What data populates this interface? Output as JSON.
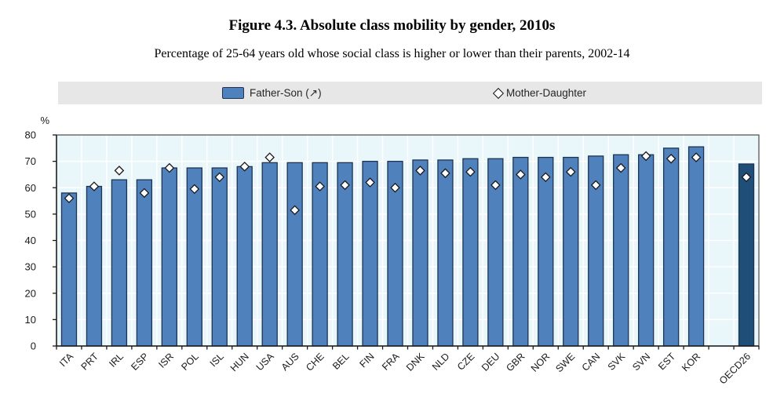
{
  "figure": {
    "title": "Figure 4.3. Absolute class mobility by gender, 2010s",
    "subtitle": "Percentage of 25-64 years old whose social class is higher or lower than their parents, 2002-14"
  },
  "legend": {
    "father_son_label": "Father-Son (↗)",
    "mother_daughter_label": "Mother-Daughter"
  },
  "colors": {
    "bar_fill": "#4f81bd",
    "bar_stroke": "#1f3352",
    "highlight_bar_fill": "#1f4e79",
    "marker_fill": "#ffffff",
    "marker_stroke": "#1a1a1a",
    "plot_bg": "#e9f6fa",
    "gridline": "#ffffff",
    "legend_bg": "#e7e7e7",
    "axis_line": "#1a1a1a",
    "plot_border": "#4a4a4a",
    "tick_label": "#1a1a1a"
  },
  "chart_data": {
    "type": "bar",
    "title": "Figure 4.3. Absolute class mobility by gender, 2010s",
    "subtitle": "Percentage of 25-64 years old whose social class is higher or lower than their parents, 2002-14",
    "ylabel": "%",
    "ylim": [
      0,
      80
    ],
    "ytick_interval": 10,
    "grid": true,
    "legend_position": "top",
    "highlight_category": "OECD26",
    "gap_before_highlight": true,
    "categories": [
      "ITA",
      "PRT",
      "IRL",
      "ESP",
      "ISR",
      "POL",
      "ISL",
      "HUN",
      "USA",
      "AUS",
      "CHE",
      "BEL",
      "FIN",
      "FRA",
      "DNK",
      "NLD",
      "CZE",
      "DEU",
      "GBR",
      "NOR",
      "SWE",
      "CAN",
      "SVK",
      "SVN",
      "EST",
      "KOR",
      "OECD26"
    ],
    "series": [
      {
        "name": "Father-Son (↗)",
        "style": "bar",
        "values": [
          58,
          60.5,
          63,
          63,
          67.5,
          67.5,
          67.5,
          68,
          69.5,
          69.5,
          69.5,
          69.5,
          70,
          70,
          70.5,
          70.5,
          71,
          71,
          71.5,
          71.5,
          71.5,
          72,
          72.5,
          72.5,
          75,
          75.5,
          69
        ]
      },
      {
        "name": "Mother-Daughter",
        "style": "diamond-marker",
        "values": [
          56,
          60.5,
          66.5,
          58,
          67.5,
          59.5,
          64,
          68,
          71.5,
          51.5,
          60.5,
          61,
          62,
          60,
          66.5,
          65.5,
          66,
          61,
          65,
          64,
          66,
          61,
          67.5,
          72,
          71,
          71.5,
          64
        ]
      }
    ]
  }
}
